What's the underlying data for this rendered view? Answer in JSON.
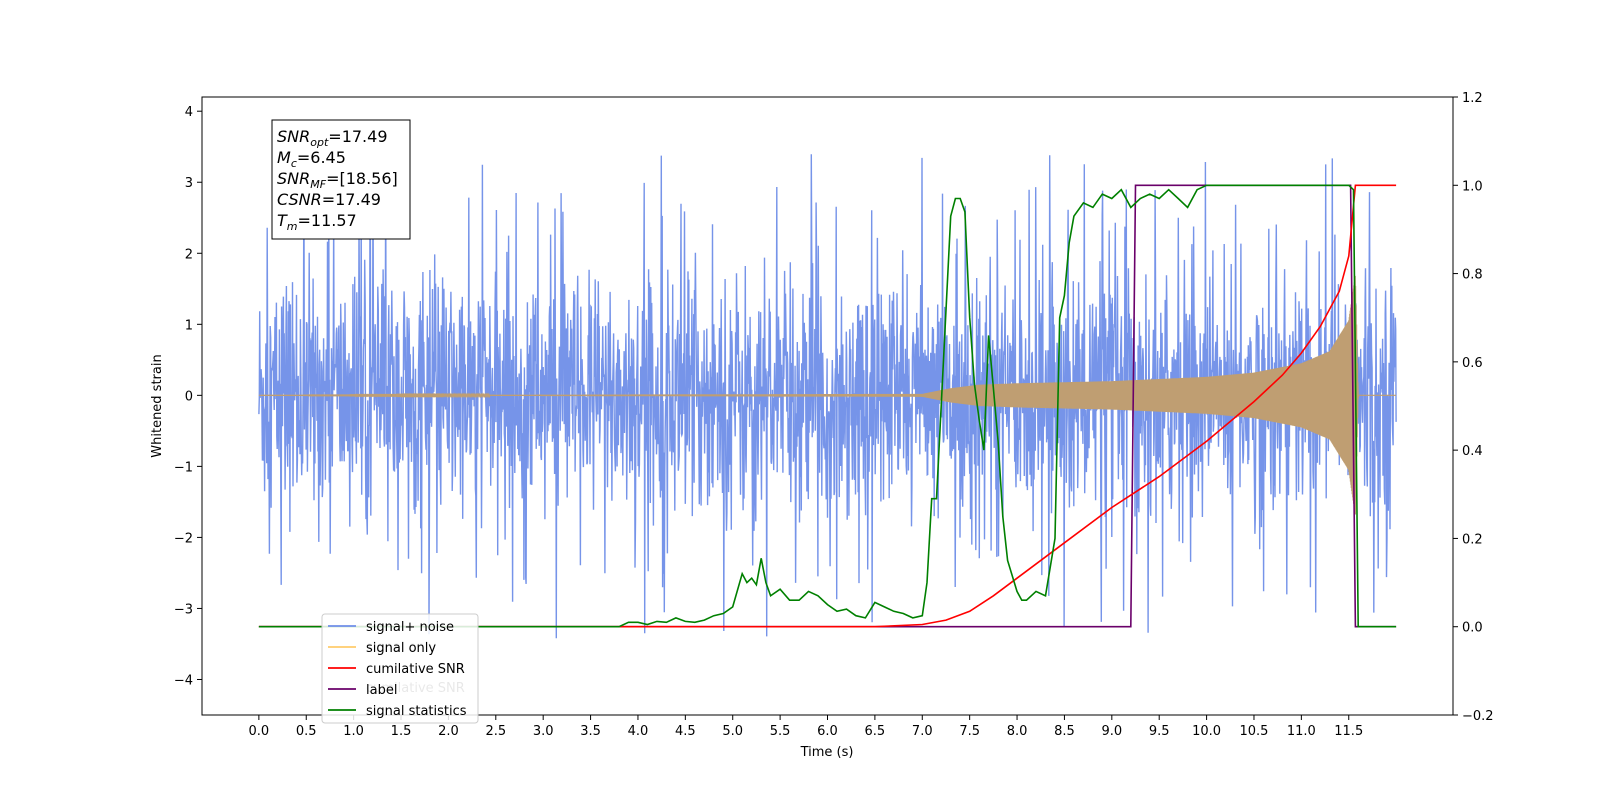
{
  "chart_data": {
    "type": "line",
    "xlabel": "Time (s)",
    "ylabel": "Whitened strain",
    "xlim": [
      -0.6,
      12.6
    ],
    "ylim": [
      -4.5,
      4.2
    ],
    "ylim_right": [
      -0.2,
      1.2
    ],
    "x_ticks": [
      0.0,
      0.5,
      1.0,
      1.5,
      2.0,
      2.5,
      3.0,
      3.5,
      4.0,
      4.5,
      5.0,
      5.5,
      6.0,
      6.5,
      7.0,
      7.5,
      8.0,
      8.5,
      9.0,
      9.5,
      10.0,
      10.5,
      11.0,
      11.5
    ],
    "x_tick_labels": [
      "0.0",
      "0.5",
      "1.0",
      "1.5",
      "2.0",
      "2.5",
      "3.0",
      "3.5",
      "4.0",
      "4.5",
      "5.0",
      "5.5",
      "6.0",
      "6.5",
      "7.0",
      "7.5",
      "8.0",
      "8.5",
      "9.0",
      "9.5",
      "10.0",
      "10.5",
      "11.0",
      "11.5"
    ],
    "y_ticks": [
      4,
      3,
      2,
      1,
      0,
      -1,
      -2,
      -3,
      -4
    ],
    "y_tick_labels": [
      "4",
      "3",
      "2",
      "1",
      "0",
      "−1",
      "−2",
      "−3",
      "−4"
    ],
    "y_right_ticks": [
      1.2,
      1.0,
      0.8,
      0.6,
      0.4,
      0.2,
      0.0,
      -0.2
    ],
    "y_right_tick_labels": [
      "1.2",
      "1.0",
      "0.8",
      "0.6",
      "0.4",
      "0.2",
      "0.0",
      "−0.2"
    ],
    "grid": false,
    "legend_position": "bottom-left",
    "series": [
      {
        "name": "signal+ noise",
        "axis": "left",
        "color": "#6f8ee8",
        "description_values": "noise band, typical envelope",
        "envelope_upper": 1.8,
        "envelope_lower": -1.8,
        "spike_max": 3.8,
        "spike_min": -4.1,
        "x_range": [
          0.0,
          12.0
        ]
      },
      {
        "name": "signal only",
        "axis": "left",
        "color": "#bf9e72",
        "chirp_envelope": {
          "x": [
            0.0,
            7.0,
            7.3,
            7.6,
            8.0,
            9.0,
            10.0,
            10.5,
            11.0,
            11.3,
            11.5,
            11.57,
            11.6,
            12.0
          ],
          "amplitude": [
            0.0,
            0.02,
            0.1,
            0.15,
            0.17,
            0.2,
            0.26,
            0.32,
            0.45,
            0.62,
            1.05,
            1.7,
            0.0,
            0.0
          ]
        }
      },
      {
        "name": "cumilative SNR",
        "axis": "right",
        "color": "#ff0000",
        "x": [
          0.0,
          6.5,
          7.0,
          7.25,
          7.5,
          7.75,
          8.0,
          8.5,
          9.0,
          9.5,
          10.0,
          10.5,
          10.8,
          11.0,
          11.2,
          11.4,
          11.5,
          11.57,
          12.0
        ],
        "y": [
          0.0,
          0.0,
          0.005,
          0.015,
          0.035,
          0.07,
          0.11,
          0.19,
          0.27,
          0.34,
          0.42,
          0.51,
          0.57,
          0.62,
          0.68,
          0.76,
          0.84,
          1.0,
          1.0
        ]
      },
      {
        "name": "label",
        "axis": "right",
        "color": "#6a006a",
        "x": [
          0.0,
          9.2,
          9.25,
          11.52,
          11.57,
          12.0
        ],
        "y": [
          0.0,
          0.0,
          1.0,
          1.0,
          0.0,
          0.0
        ]
      },
      {
        "name": "signal statistics",
        "axis": "right",
        "color": "#008000",
        "x": [
          0.0,
          3.8,
          3.9,
          4.0,
          4.1,
          4.2,
          4.3,
          4.4,
          4.5,
          4.6,
          4.7,
          4.8,
          4.9,
          5.0,
          5.1,
          5.15,
          5.2,
          5.25,
          5.3,
          5.35,
          5.4,
          5.5,
          5.6,
          5.7,
          5.8,
          5.9,
          6.0,
          6.1,
          6.2,
          6.3,
          6.4,
          6.5,
          6.6,
          6.7,
          6.8,
          6.9,
          7.0,
          7.05,
          7.1,
          7.15,
          7.2,
          7.3,
          7.35,
          7.4,
          7.45,
          7.5,
          7.55,
          7.6,
          7.65,
          7.7,
          7.75,
          7.8,
          7.85,
          7.9,
          8.0,
          8.05,
          8.1,
          8.2,
          8.3,
          8.4,
          8.45,
          8.5,
          8.55,
          8.6,
          8.7,
          8.8,
          8.9,
          9.0,
          9.1,
          9.2,
          9.3,
          9.4,
          9.5,
          9.6,
          9.7,
          9.8,
          9.9,
          10.0,
          10.2,
          11.0,
          11.5,
          11.55,
          11.6,
          11.7,
          12.0
        ],
        "y": [
          0.0,
          0.0,
          0.01,
          0.01,
          0.005,
          0.012,
          0.01,
          0.02,
          0.012,
          0.01,
          0.015,
          0.025,
          0.03,
          0.045,
          0.12,
          0.1,
          0.11,
          0.095,
          0.155,
          0.1,
          0.07,
          0.085,
          0.06,
          0.06,
          0.08,
          0.07,
          0.05,
          0.035,
          0.04,
          0.025,
          0.02,
          0.055,
          0.045,
          0.035,
          0.03,
          0.02,
          0.025,
          0.1,
          0.29,
          0.29,
          0.5,
          0.93,
          0.97,
          0.97,
          0.94,
          0.7,
          0.55,
          0.47,
          0.4,
          0.66,
          0.54,
          0.42,
          0.25,
          0.15,
          0.08,
          0.06,
          0.06,
          0.08,
          0.07,
          0.2,
          0.7,
          0.75,
          0.87,
          0.93,
          0.96,
          0.95,
          0.98,
          0.97,
          0.99,
          0.95,
          0.97,
          0.98,
          0.97,
          0.99,
          0.97,
          0.95,
          0.99,
          1.0,
          1.0,
          1.0,
          1.0,
          0.99,
          0.0,
          0.0,
          0.0
        ]
      }
    ],
    "info_box": [
      {
        "base": "SNR",
        "sub": "opt",
        "value": "=17.49"
      },
      {
        "base": "M",
        "sub": "c",
        "value": "=6.45"
      },
      {
        "base": "SNR",
        "sub": "MF",
        "value": "=[18.56]"
      },
      {
        "base": "CSNR",
        "sub": "",
        "value": "=17.49"
      },
      {
        "base": "T",
        "sub": "m",
        "value": "=11.57"
      }
    ],
    "legend": [
      {
        "label": "signal+ noise",
        "color": "#6f8ee8"
      },
      {
        "label": "signal only",
        "color": "#ffcb6b"
      },
      {
        "label": "cumilative SNR",
        "color": "#ff0000"
      },
      {
        "label": "label",
        "color": "#6a006a"
      },
      {
        "label": "signal statistics",
        "color": "#008000"
      }
    ],
    "legend_ghost_text": [
      "signal only",
      "cumilative SNR"
    ]
  }
}
